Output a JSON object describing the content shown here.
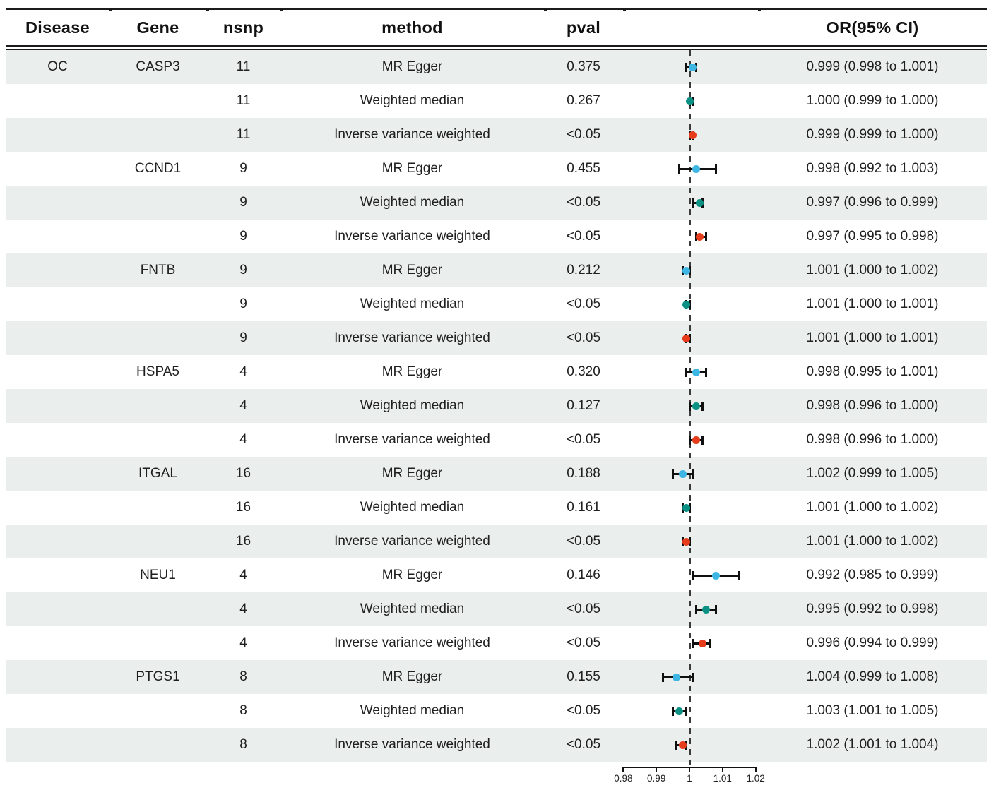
{
  "figure": {
    "columns": [
      {
        "key": "disease",
        "label": "Disease"
      },
      {
        "key": "gene",
        "label": "Gene"
      },
      {
        "key": "nsnp",
        "label": "nsnp"
      },
      {
        "key": "method",
        "label": "method"
      },
      {
        "key": "pval",
        "label": "pval"
      },
      {
        "key": "plot",
        "label": ""
      },
      {
        "key": "or",
        "label": "OR(95% CI)"
      }
    ]
  },
  "chart_data": {
    "type": "forest",
    "x_axis": {
      "tick_labels": [
        "0.98",
        "0.99",
        "1",
        "1.01",
        "1.02"
      ],
      "tick_values": [
        0.98,
        0.99,
        1,
        1.01,
        1.02
      ],
      "range": [
        0.98,
        1.02
      ],
      "ref_line": 1
    },
    "method_colors": {
      "MR Egger": "#3eb6e4",
      "Weighted median": "#0b9184",
      "Inverse variance weighted": "#e63c1c"
    },
    "rows": [
      {
        "disease": "OC",
        "gene": "CASP3",
        "nsnp": "11",
        "method": "MR Egger",
        "pval": "0.375",
        "or": "0.999 (0.998 to 1.001)",
        "plot": {
          "est": 1.001,
          "lo": 0.999,
          "hi": 1.002
        }
      },
      {
        "disease": "",
        "gene": "",
        "nsnp": "11",
        "method": "Weighted median",
        "pval": "0.267",
        "or": "1.000 (0.999 to 1.000)",
        "plot": {
          "est": 1.0,
          "lo": 1.0,
          "hi": 1.001
        }
      },
      {
        "disease": "",
        "gene": "",
        "nsnp": "11",
        "method": "Inverse variance weighted",
        "pval": "<0.05",
        "or": "0.999 (0.999 to 1.000)",
        "plot": {
          "est": 1.001,
          "lo": 1.0,
          "hi": 1.001
        }
      },
      {
        "disease": "",
        "gene": "CCND1",
        "nsnp": "9",
        "method": "MR Egger",
        "pval": "0.455",
        "or": "0.998 (0.992 to 1.003)",
        "plot": {
          "est": 1.002,
          "lo": 0.997,
          "hi": 1.008
        }
      },
      {
        "disease": "",
        "gene": "",
        "nsnp": "9",
        "method": "Weighted median",
        "pval": "<0.05",
        "or": "0.997 (0.996 to 0.999)",
        "plot": {
          "est": 1.003,
          "lo": 1.001,
          "hi": 1.004
        }
      },
      {
        "disease": "",
        "gene": "",
        "nsnp": "9",
        "method": "Inverse variance weighted",
        "pval": "<0.05",
        "or": "0.997 (0.995 to 0.998)",
        "plot": {
          "est": 1.003,
          "lo": 1.002,
          "hi": 1.005
        }
      },
      {
        "disease": "",
        "gene": "FNTB",
        "nsnp": "9",
        "method": "MR Egger",
        "pval": "0.212",
        "or": "1.001 (1.000 to 1.002)",
        "plot": {
          "est": 0.999,
          "lo": 0.998,
          "hi": 1.0
        }
      },
      {
        "disease": "",
        "gene": "",
        "nsnp": "9",
        "method": "Weighted median",
        "pval": "<0.05",
        "or": "1.001 (1.000 to 1.001)",
        "plot": {
          "est": 0.999,
          "lo": 0.999,
          "hi": 1.0
        }
      },
      {
        "disease": "",
        "gene": "",
        "nsnp": "9",
        "method": "Inverse variance weighted",
        "pval": "<0.05",
        "or": "1.001 (1.000 to 1.001)",
        "plot": {
          "est": 0.999,
          "lo": 0.999,
          "hi": 1.0
        }
      },
      {
        "disease": "",
        "gene": "HSPA5",
        "nsnp": "4",
        "method": "MR Egger",
        "pval": "0.320",
        "or": "0.998 (0.995 to 1.001)",
        "plot": {
          "est": 1.002,
          "lo": 0.999,
          "hi": 1.005
        }
      },
      {
        "disease": "",
        "gene": "",
        "nsnp": "4",
        "method": "Weighted median",
        "pval": "0.127",
        "or": "0.998 (0.996 to 1.000)",
        "plot": {
          "est": 1.002,
          "lo": 1.0,
          "hi": 1.004
        }
      },
      {
        "disease": "",
        "gene": "",
        "nsnp": "4",
        "method": "Inverse variance weighted",
        "pval": "<0.05",
        "or": "0.998 (0.996 to 1.000)",
        "plot": {
          "est": 1.002,
          "lo": 1.0,
          "hi": 1.004
        }
      },
      {
        "disease": "",
        "gene": "ITGAL",
        "nsnp": "16",
        "method": "MR Egger",
        "pval": "0.188",
        "or": "1.002 (0.999 to 1.005)",
        "plot": {
          "est": 0.998,
          "lo": 0.995,
          "hi": 1.001
        }
      },
      {
        "disease": "",
        "gene": "",
        "nsnp": "16",
        "method": "Weighted median",
        "pval": "0.161",
        "or": "1.001 (1.000 to 1.002)",
        "plot": {
          "est": 0.999,
          "lo": 0.998,
          "hi": 1.0
        }
      },
      {
        "disease": "",
        "gene": "",
        "nsnp": "16",
        "method": "Inverse variance weighted",
        "pval": "<0.05",
        "or": "1.001 (1.000 to 1.002)",
        "plot": {
          "est": 0.999,
          "lo": 0.998,
          "hi": 1.0
        }
      },
      {
        "disease": "",
        "gene": "NEU1",
        "nsnp": "4",
        "method": "MR Egger",
        "pval": "0.146",
        "or": "0.992 (0.985 to 0.999)",
        "plot": {
          "est": 1.008,
          "lo": 1.001,
          "hi": 1.015
        }
      },
      {
        "disease": "",
        "gene": "",
        "nsnp": "4",
        "method": "Weighted median",
        "pval": "<0.05",
        "or": "0.995 (0.992 to 0.998)",
        "plot": {
          "est": 1.005,
          "lo": 1.002,
          "hi": 1.008
        }
      },
      {
        "disease": "",
        "gene": "",
        "nsnp": "4",
        "method": "Inverse variance weighted",
        "pval": "<0.05",
        "or": "0.996 (0.994 to 0.999)",
        "plot": {
          "est": 1.004,
          "lo": 1.001,
          "hi": 1.006
        }
      },
      {
        "disease": "",
        "gene": "PTGS1",
        "nsnp": "8",
        "method": "MR Egger",
        "pval": "0.155",
        "or": "1.004 (0.999 to 1.008)",
        "plot": {
          "est": 0.996,
          "lo": 0.992,
          "hi": 1.001
        }
      },
      {
        "disease": "",
        "gene": "",
        "nsnp": "8",
        "method": "Weighted median",
        "pval": "<0.05",
        "or": "1.003 (1.001 to 1.005)",
        "plot": {
          "est": 0.997,
          "lo": 0.995,
          "hi": 0.999
        }
      },
      {
        "disease": "",
        "gene": "",
        "nsnp": "8",
        "method": "Inverse variance weighted",
        "pval": "<0.05",
        "or": "1.002 (1.001 to 1.004)",
        "plot": {
          "est": 0.998,
          "lo": 0.996,
          "hi": 0.999
        }
      }
    ]
  }
}
